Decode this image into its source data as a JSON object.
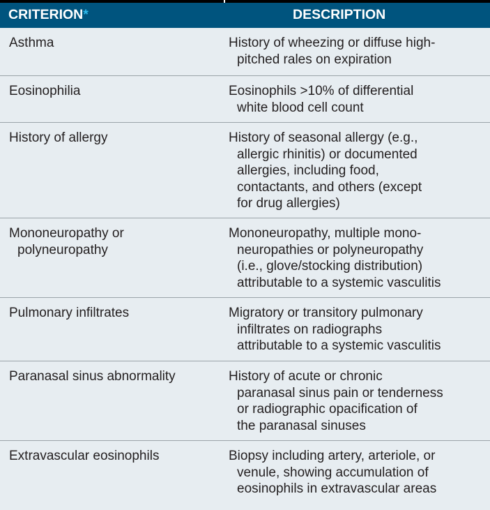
{
  "header": {
    "criterion": "CRITERION",
    "asterisk": "*",
    "description": "DESCRIPTION"
  },
  "rows": [
    {
      "criterion": [
        "Asthma"
      ],
      "description": [
        "History of wheezing or diffuse high-",
        "pitched rales on expiration"
      ]
    },
    {
      "criterion": [
        "Eosinophilia"
      ],
      "description": [
        "Eosinophils >10% of differential",
        "white blood cell count"
      ]
    },
    {
      "criterion": [
        "History of allergy"
      ],
      "description": [
        "History of seasonal allergy (e.g.,",
        "allergic rhinitis) or documented",
        "allergies, including food,",
        "contactants, and others (except",
        "for drug allergies)"
      ]
    },
    {
      "criterion": [
        "Mononeuropathy or",
        "polyneuropathy"
      ],
      "description": [
        "Mononeuropathy, multiple mono-",
        "neuropathies or polyneuropathy",
        "(i.e., glove/stocking distribution)",
        "attributable to a systemic vasculitis"
      ]
    },
    {
      "criterion": [
        "Pulmonary infiltrates"
      ],
      "description": [
        "Migratory or transitory pulmonary",
        "infiltrates on radiographs",
        "attributable to a systemic vasculitis"
      ]
    },
    {
      "criterion": [
        "Paranasal sinus abnormality"
      ],
      "description": [
        "History of acute or chronic",
        "paranasal sinus pain or tenderness",
        "or radiographic opacification of",
        "the paranasal sinuses"
      ]
    },
    {
      "criterion": [
        "Extravascular eosinophils"
      ],
      "description": [
        "Biopsy including artery, arteriole, or",
        "venule, showing accumulation of",
        "eosinophils in extravascular areas"
      ]
    }
  ],
  "colors": {
    "header_bg": "#00547e",
    "asterisk": "#2fb9ea",
    "row_bg": "#e7edf1",
    "divider": "#9aa3a8"
  }
}
